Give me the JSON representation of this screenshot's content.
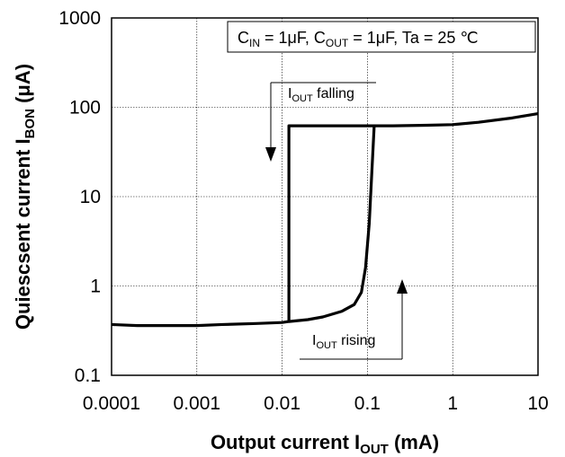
{
  "chart_data": {
    "type": "line",
    "xlabel": {
      "main": "Output current  I",
      "sub": "OUT",
      "unit": " (mA)"
    },
    "ylabel": {
      "main": "Quiescsent current  I",
      "sub": "BON",
      "unit": " (μA)"
    },
    "x_scale": "log",
    "y_scale": "log",
    "xlim": [
      0.0001,
      10
    ],
    "ylim": [
      0.1,
      1000
    ],
    "x_ticks": [
      "0.0001",
      "0.001",
      "0.01",
      "0.1",
      "1",
      "10"
    ],
    "y_ticks": [
      "0.1",
      "1",
      "10",
      "100",
      "1000"
    ],
    "grid": true,
    "conditions": {
      "cin": "C",
      "cin_sub": "IN",
      "cin_val": " = 1μF, ",
      "cout": "C",
      "cout_sub": "OUT",
      "cout_val": " = 1μF, Ta = 25 ℃"
    },
    "annotations": {
      "falling": {
        "main": "I",
        "sub": "OUT",
        "rest": " falling"
      },
      "rising": {
        "main": "I",
        "sub": "OUT",
        "rest": " rising"
      }
    },
    "series": [
      {
        "points": [
          [
            0.0001,
            0.37
          ],
          [
            0.0002,
            0.36
          ],
          [
            0.0005,
            0.36
          ],
          [
            0.001,
            0.36
          ],
          [
            0.002,
            0.37
          ],
          [
            0.005,
            0.38
          ],
          [
            0.01,
            0.39
          ],
          [
            0.012,
            0.4
          ],
          [
            0.02,
            0.42
          ],
          [
            0.03,
            0.45
          ],
          [
            0.05,
            0.52
          ],
          [
            0.07,
            0.62
          ],
          [
            0.085,
            0.85
          ],
          [
            0.095,
            1.6
          ],
          [
            0.105,
            5
          ],
          [
            0.113,
            20
          ],
          [
            0.12,
            62
          ],
          [
            0.2,
            62
          ],
          [
            0.5,
            63
          ],
          [
            1,
            64
          ],
          [
            2,
            68
          ],
          [
            5,
            76
          ],
          [
            10,
            85
          ]
        ]
      },
      {
        "points": [
          [
            0.12,
            62
          ],
          [
            0.05,
            62
          ],
          [
            0.02,
            62
          ],
          [
            0.012,
            62
          ],
          [
            0.012,
            0.4
          ]
        ]
      }
    ]
  }
}
